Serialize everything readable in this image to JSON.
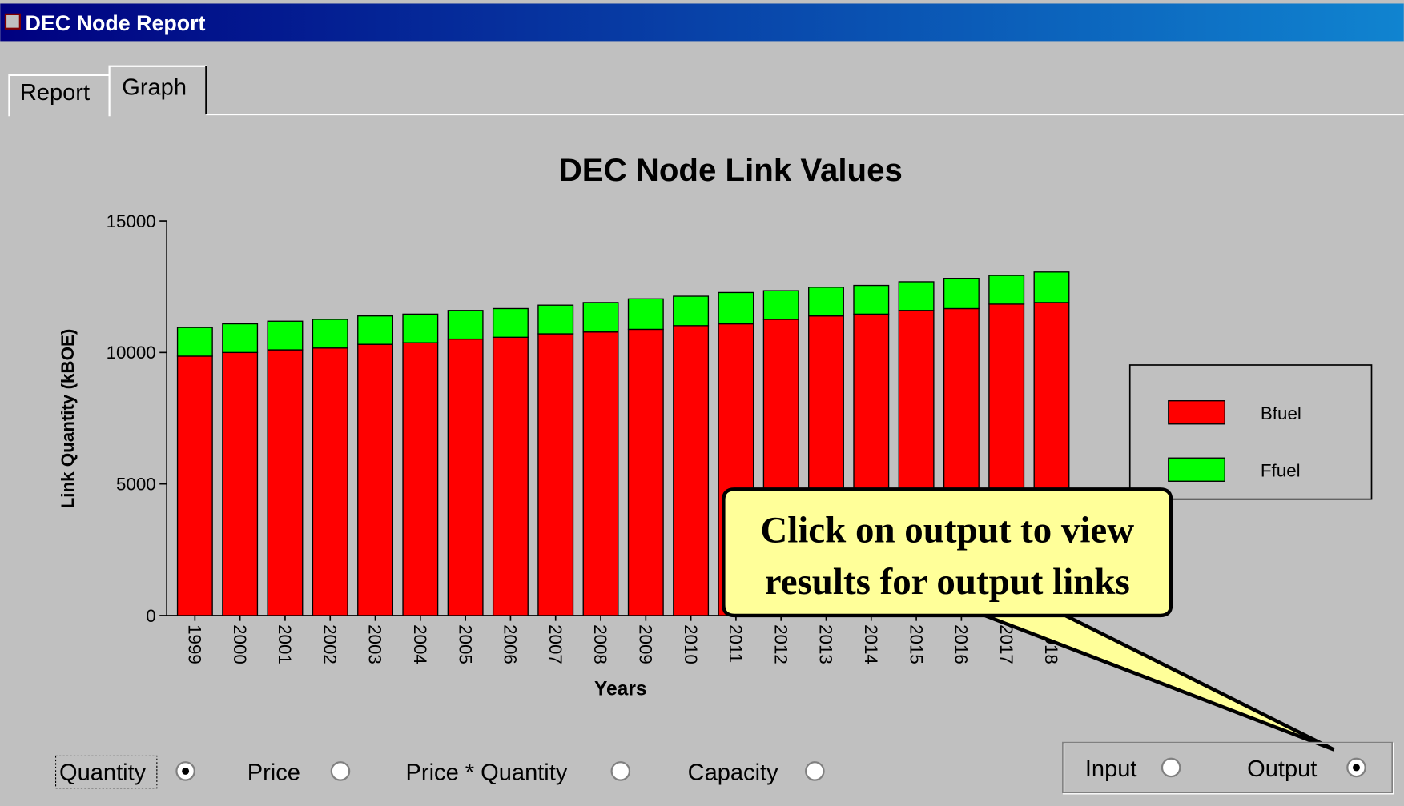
{
  "window_title": "DEC Node Report",
  "tabs": [
    {
      "label": "Report",
      "active": false
    },
    {
      "label": "Graph",
      "active": true
    }
  ],
  "chart_data": {
    "type": "bar",
    "stacked": true,
    "title": "DEC Node Link Values",
    "x_label": "Years",
    "y_label": "Link Quantity (kBOE)",
    "categories": [
      "1999",
      "2000",
      "2001",
      "2002",
      "2003",
      "2004",
      "2005",
      "2006",
      "2007",
      "2008",
      "2009",
      "2010",
      "2011",
      "2012",
      "2013",
      "2014",
      "2015",
      "2016",
      "2017",
      "2018"
    ],
    "series": [
      {
        "name": "Bfuel",
        "color": "#ff0000",
        "values": [
          9860,
          10000,
          10100,
          10170,
          10310,
          10370,
          10510,
          10580,
          10710,
          10780,
          10880,
          11020,
          11090,
          11260,
          11390,
          11460,
          11600,
          11670,
          11840,
          11900
        ]
      },
      {
        "name": "Ffuel",
        "color": "#00ff00",
        "values": [
          1090,
          1090,
          1090,
          1090,
          1080,
          1090,
          1090,
          1090,
          1090,
          1120,
          1160,
          1120,
          1190,
          1090,
          1090,
          1090,
          1090,
          1150,
          1090,
          1160
        ]
      }
    ],
    "ylim": [
      0,
      15000
    ],
    "yticks": [
      0,
      5000,
      10000,
      15000
    ],
    "legend": "right"
  },
  "callout": {
    "lines": [
      "Click on output to view",
      "results for output links"
    ]
  },
  "measure_options": [
    {
      "label": "Quantity",
      "checked": true
    },
    {
      "label": "Price",
      "checked": false
    },
    {
      "label": "Price * Quantity",
      "checked": false
    },
    {
      "label": "Capacity",
      "checked": false
    }
  ],
  "direction_options": [
    {
      "label": "Input",
      "checked": false
    },
    {
      "label": "Output",
      "checked": true
    }
  ]
}
